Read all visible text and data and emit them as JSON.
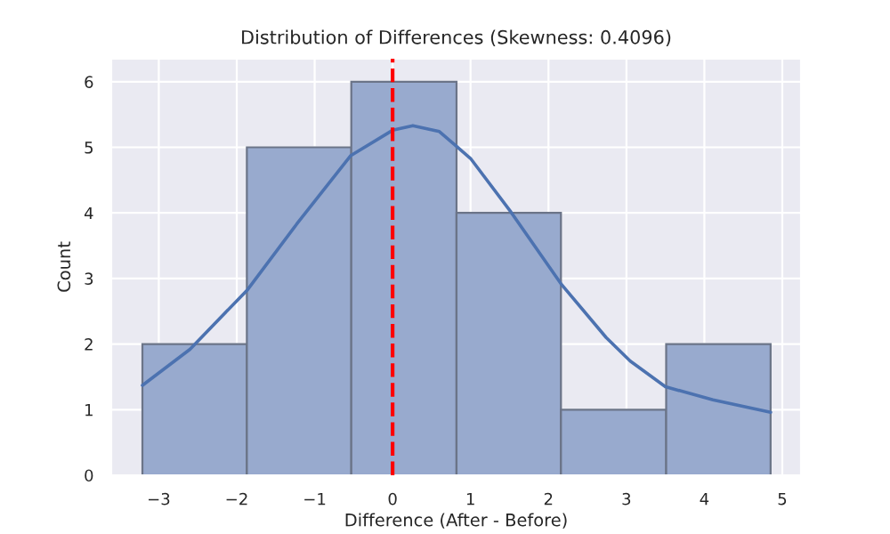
{
  "chart_data": {
    "type": "histogram",
    "title": "Distribution of Differences (Skewness: 0.4096)",
    "xlabel": "Difference (After - Before)",
    "ylabel": "Count",
    "bins": [
      -3.21,
      -1.87,
      -0.53,
      0.82,
      2.16,
      3.51,
      4.85
    ],
    "values": [
      2,
      5,
      6,
      4,
      1,
      2
    ],
    "color": "#98aace",
    "series": [
      {
        "type": "line",
        "color": "#4c72b0",
        "x": [
          -3.21,
          -2.6,
          -1.86,
          -1.23,
          -0.54,
          0,
          0.26,
          0.6,
          1.0,
          1.52,
          2.16,
          2.74,
          3.05,
          3.5,
          4.11,
          4.85
        ],
        "values": [
          1.37,
          1.92,
          2.83,
          3.83,
          4.87,
          5.26,
          5.33,
          5.24,
          4.83,
          4.01,
          2.92,
          2.1,
          1.74,
          1.35,
          1.15,
          0.96
        ]
      }
    ],
    "ref_lines": [
      {
        "axis": "x",
        "value": 0,
        "color": "#ff0000",
        "line_style": "dashed"
      }
    ],
    "xlim": [
      -3.61,
      5.24
    ],
    "ylim": [
      0,
      6.35
    ],
    "xticks": [
      {
        "value": -3,
        "label": "−3"
      },
      {
        "value": -2,
        "label": "−2"
      },
      {
        "value": -1,
        "label": "−1"
      },
      0,
      1,
      2,
      3,
      4,
      5
    ],
    "yticks": [
      0,
      1,
      2,
      3,
      4,
      5,
      6
    ],
    "grid": true
  }
}
